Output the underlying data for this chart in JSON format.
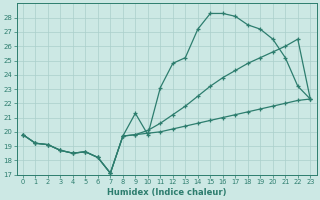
{
  "xlabel": "Humidex (Indice chaleur)",
  "bg_color": "#cce8e4",
  "grid_color": "#aacfcb",
  "line_color": "#2d7d6e",
  "xlim": [
    -0.5,
    23.5
  ],
  "ylim": [
    17,
    29
  ],
  "yticks": [
    17,
    18,
    19,
    20,
    21,
    22,
    23,
    24,
    25,
    26,
    27,
    28
  ],
  "xticks": [
    0,
    1,
    2,
    3,
    4,
    5,
    6,
    7,
    8,
    9,
    10,
    11,
    12,
    13,
    14,
    15,
    16,
    17,
    18,
    19,
    20,
    21,
    22,
    23
  ],
  "line1_x": [
    0,
    1,
    2,
    3,
    4,
    5,
    6,
    7,
    8,
    9,
    10,
    11,
    12,
    13,
    14,
    15,
    16,
    17,
    18,
    19,
    20,
    21,
    22,
    23
  ],
  "line1_y": [
    19.8,
    19.2,
    19.1,
    18.7,
    18.5,
    18.6,
    18.2,
    17.1,
    19.7,
    21.3,
    19.8,
    23.1,
    24.8,
    25.2,
    27.2,
    28.3,
    28.3,
    28.1,
    27.5,
    27.2,
    26.5,
    25.2,
    23.2,
    22.3
  ],
  "line2_x": [
    0,
    1,
    2,
    3,
    4,
    5,
    6,
    7,
    8,
    9,
    10,
    11,
    12,
    13,
    14,
    15,
    16,
    17,
    18,
    19,
    20,
    21,
    22,
    23
  ],
  "line2_y": [
    19.8,
    19.2,
    19.1,
    18.7,
    18.5,
    18.6,
    18.2,
    17.1,
    19.7,
    19.8,
    20.1,
    20.6,
    21.2,
    21.8,
    22.5,
    23.2,
    23.8,
    24.3,
    24.8,
    25.2,
    25.6,
    26.0,
    26.5,
    22.3
  ],
  "line3_x": [
    0,
    1,
    2,
    3,
    4,
    5,
    6,
    7,
    8,
    9,
    10,
    11,
    12,
    13,
    14,
    15,
    16,
    17,
    18,
    19,
    20,
    21,
    22,
    23
  ],
  "line3_y": [
    19.8,
    19.2,
    19.1,
    18.7,
    18.5,
    18.6,
    18.2,
    17.1,
    19.7,
    19.8,
    19.9,
    20.0,
    20.2,
    20.4,
    20.6,
    20.8,
    21.0,
    21.2,
    21.4,
    21.6,
    21.8,
    22.0,
    22.2,
    22.3
  ]
}
